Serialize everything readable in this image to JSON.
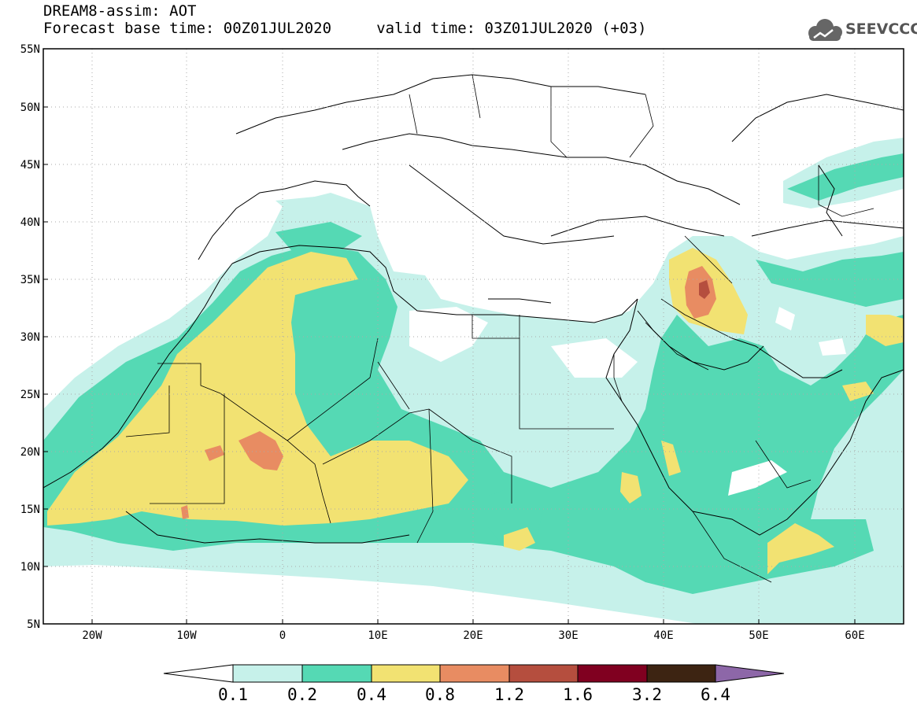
{
  "title": {
    "line1": "DREAM8-assim: AOT",
    "line2": "Forecast base time: 00Z01JUL2020     valid time: 03Z01JUL2020 (+03)"
  },
  "logo": {
    "text": "SEEVCCC",
    "icon": "cloud-icon"
  },
  "axes": {
    "lat_labels": [
      "5N",
      "10N",
      "15N",
      "20N",
      "25N",
      "30N",
      "35N",
      "40N",
      "45N",
      "50N",
      "55N"
    ],
    "lon_labels": [
      "20W",
      "10W",
      "0",
      "10E",
      "20E",
      "30E",
      "40E",
      "50E",
      "60E"
    ],
    "lon_range": [
      -25,
      65
    ],
    "lat_range": [
      5,
      55
    ],
    "grid": "dotted"
  },
  "colorbar": {
    "labels": [
      "0.1",
      "0.2",
      "0.4",
      "0.8",
      "1.2",
      "1.6",
      "3.2",
      "6.4"
    ],
    "colors": [
      "#ffffff",
      "#c6f1ea",
      "#55d9b4",
      "#f2e272",
      "#e88c62",
      "#b54e3e",
      "#800020",
      "#3d2412",
      "#8d67a8"
    ]
  },
  "colors": {
    "c1": "#c6f1ea",
    "c2": "#55d9b4",
    "c3": "#f2e272",
    "c4": "#e88c62",
    "c5": "#b54e3e"
  }
}
